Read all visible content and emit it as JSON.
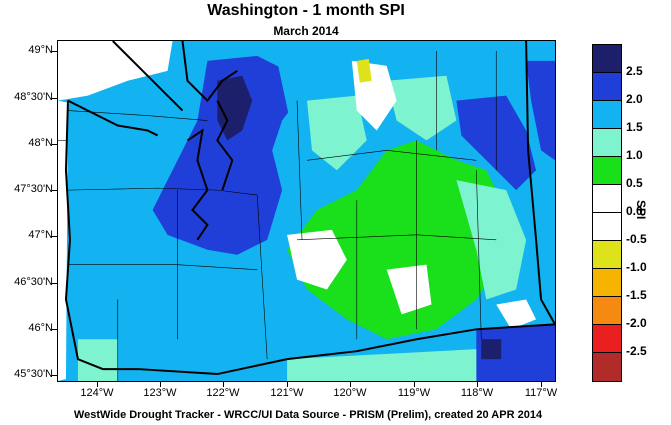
{
  "header": {
    "title": "Washington - 1 month SPI",
    "subtitle": "March 2014"
  },
  "footer": {
    "credit": "WestWide Drought Tracker - WRCC/UI  Data Source - PRISM (Prelim), created 20 APR 2014"
  },
  "map": {
    "lat_labels": [
      "49°N",
      "48°30'N",
      "48°N",
      "47°30'N",
      "47°N",
      "46°30'N",
      "46°N",
      "45°30'N"
    ],
    "lon_labels": [
      "124°W",
      "123°W",
      "122°W",
      "121°W",
      "120°W",
      "119°W",
      "118°W",
      "117°W"
    ],
    "dominant_regions": [
      {
        "region": "western Washington / coast",
        "spi_class": "1.5 to 2.0"
      },
      {
        "region": "Puget Sound",
        "spi_class": "2.0 to 2.5"
      },
      {
        "region": "Columbia Basin",
        "spi_class": "0.5 to 1.0"
      },
      {
        "region": "southeast corner",
        "spi_class": "2.0 to 2.5"
      }
    ]
  },
  "legend": {
    "title": "SPI",
    "classes": [
      {
        "label": "2.5",
        "color": "#1c1f6b"
      },
      {
        "label": "2.0",
        "color": "#1f3fd8"
      },
      {
        "label": "1.5",
        "color": "#12b3f0"
      },
      {
        "label": "1.0",
        "color": "#7df3cf"
      },
      {
        "label": "0.5",
        "color": "#19e01b"
      },
      {
        "label": "0.0",
        "color": "#ffffff"
      },
      {
        "label": "-0.5",
        "color": "#ffffff"
      },
      {
        "label": "-1.0",
        "color": "#dde21a"
      },
      {
        "label": "-1.5",
        "color": "#f5b400"
      },
      {
        "label": "-2.0",
        "color": "#f48a10"
      },
      {
        "label": "-2.5",
        "color": "#ea1f1f"
      },
      {
        "label": "",
        "color": "#b22b2b"
      }
    ]
  }
}
